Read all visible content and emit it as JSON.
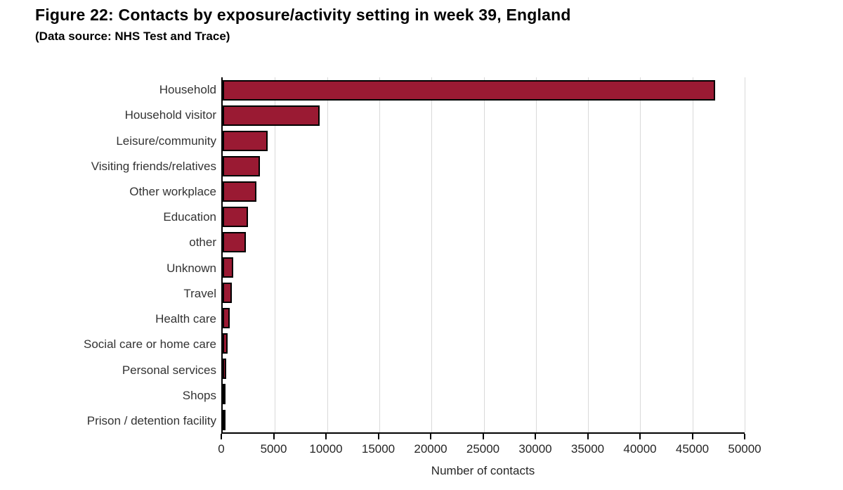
{
  "figure": {
    "title": "Figure 22: Contacts by exposure/activity setting in week 39, England",
    "subtitle": "(Data source: NHS Test and Trace)"
  },
  "chart_data": {
    "type": "bar",
    "orientation": "horizontal",
    "title": "Figure 22: Contacts by exposure/activity setting in week 39, England",
    "subtitle": "(Data source: NHS Test and Trace)",
    "categories": [
      "Household",
      "Household visitor",
      "Leisure/community",
      "Visiting friends/relatives",
      "Other workplace",
      "Education",
      "other",
      "Unknown",
      "Travel",
      "Health care",
      "Social care or home care",
      "Personal services",
      "Shops",
      "Prison / detention facility"
    ],
    "values": [
      47200,
      9300,
      4300,
      3600,
      3200,
      2400,
      2200,
      1000,
      850,
      700,
      450,
      350,
      250,
      100
    ],
    "xlabel": "Number of contacts",
    "ylabel": "",
    "xlim": [
      0,
      50000
    ],
    "xticks": [
      0,
      5000,
      10000,
      15000,
      20000,
      25000,
      30000,
      35000,
      40000,
      45000,
      50000
    ],
    "grid": true,
    "legend": false,
    "bar_color": "#9A1A33",
    "bar_border_color": "#000000",
    "gridline_color": "#D9D9D9"
  }
}
